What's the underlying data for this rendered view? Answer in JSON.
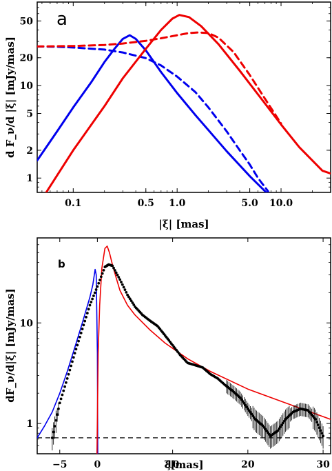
{
  "chart_data": [
    {
      "panel": "a",
      "type": "line",
      "xscale": "log",
      "yscale": "log",
      "xlim": [
        0.045,
        30
      ],
      "ylim": [
        0.7,
        80
      ],
      "xlabel": "|ξ| [mas]",
      "ylabel": "d F_ν/d |ξ| [mJy/mas]",
      "xticks": [
        0.1,
        0.5,
        1.0,
        5.0,
        10.0
      ],
      "xtick_labels": [
        "0.1",
        "0.5",
        "1.0",
        "5.0",
        "10.0"
      ],
      "yticks": [
        1,
        2,
        5,
        10,
        20,
        50
      ],
      "ytick_labels": [
        "1",
        "2",
        "5",
        "10",
        "20",
        "50"
      ],
      "series": [
        {
          "color": "#0000ee",
          "style": "solid",
          "x": [
            0.045,
            0.07,
            0.1,
            0.15,
            0.2,
            0.25,
            0.3,
            0.35,
            0.4,
            0.5,
            0.7,
            1.0,
            1.5,
            2.0,
            3.0,
            5.0,
            7.2
          ],
          "y": [
            1.55,
            3.2,
            5.8,
            11,
            18,
            25,
            32,
            35,
            32,
            24,
            14,
            8.3,
            4.8,
            3.3,
            1.95,
            1.05,
            0.7
          ]
        },
        {
          "color": "#0000ee",
          "style": "dashed",
          "x": [
            0.045,
            0.07,
            0.1,
            0.2,
            0.3,
            0.5,
            0.7,
            1.0,
            1.5,
            2.0,
            3.0,
            4.0,
            5.0,
            6.0,
            7.5
          ],
          "y": [
            26.5,
            26.3,
            25.8,
            24.5,
            22.8,
            19.8,
            16.5,
            12.5,
            8.5,
            5.8,
            3.2,
            2.0,
            1.4,
            1.0,
            0.72
          ]
        },
        {
          "color": "#ee0000",
          "style": "solid",
          "x": [
            0.055,
            0.1,
            0.2,
            0.3,
            0.5,
            0.7,
            0.9,
            1.05,
            1.3,
            1.7,
            2.5,
            4.0,
            7.0,
            10.0,
            15.0,
            25.0,
            30.0
          ],
          "y": [
            0.7,
            2.0,
            6.0,
            12,
            25,
            40,
            53,
            58,
            55,
            44,
            28,
            14.5,
            6.4,
            3.8,
            2.15,
            1.2,
            1.12
          ]
        },
        {
          "color": "#ee0000",
          "style": "dashed",
          "x": [
            0.045,
            0.1,
            0.2,
            0.3,
            0.5,
            0.7,
            1.0,
            1.3,
            1.6,
            2.0,
            2.5,
            3.5,
            5.0,
            7.0,
            10.0
          ],
          "y": [
            26.5,
            26.8,
            27.5,
            28.5,
            30.5,
            32.5,
            35,
            37,
            37.5,
            37,
            33,
            23,
            13,
            7.2,
            3.9
          ]
        }
      ]
    },
    {
      "panel": "b",
      "type": "line",
      "yscale": "log",
      "xlim": [
        -8,
        31
      ],
      "ylim": [
        0.5,
        70
      ],
      "xlabel": "ξ[mas]",
      "ylabel": "dF_ν/d|ξ| [mJy/mas]",
      "xticks": [
        -5,
        0,
        10,
        20,
        30
      ],
      "xtick_labels": [
        "−5",
        "0",
        "10",
        "20",
        "30"
      ],
      "yticks": [
        1,
        10
      ],
      "ytick_labels": [
        "1",
        "10"
      ],
      "hline": 0.72,
      "series": [
        {
          "color": "#0000ee",
          "style": "solid",
          "x": [
            -8,
            -7,
            -6,
            -5,
            -4,
            -3,
            -2,
            -1,
            -0.6,
            -0.3,
            -0.15,
            0,
            0.05
          ],
          "y": [
            0.72,
            0.95,
            1.3,
            2.0,
            3.3,
            5.7,
            10,
            18,
            24,
            34,
            30,
            5,
            0.5
          ]
        },
        {
          "color": "#ee0000",
          "style": "solid",
          "x": [
            -0.05,
            0.1,
            0.3,
            0.6,
            1.0,
            1.3,
            1.6,
            2.0,
            2.5,
            3,
            4,
            5,
            7,
            9,
            12,
            15,
            20,
            25,
            31
          ],
          "y": [
            0.5,
            5,
            15,
            35,
            55,
            58,
            50,
            38,
            28,
            21,
            15,
            12,
            8.5,
            6.3,
            4.4,
            3.3,
            2.2,
            1.6,
            1.1
          ]
        },
        {
          "color": "#000000",
          "style": "dotted-errorbars",
          "x": [
            -6,
            -5,
            -4,
            -3,
            -2,
            -1,
            0,
            1,
            1.5,
            2,
            3,
            4,
            5,
            6,
            7,
            8,
            9,
            10,
            11,
            12,
            13,
            14,
            15,
            16,
            17,
            18,
            19,
            20,
            21,
            22,
            23,
            24,
            25,
            26,
            27,
            28,
            29,
            30
          ],
          "y": [
            0.72,
            1.6,
            2.8,
            5.0,
            8.7,
            15,
            23,
            36,
            38,
            37,
            27,
            19,
            14.5,
            12,
            10.5,
            9.3,
            7.5,
            6.0,
            4.8,
            4.0,
            3.8,
            3.6,
            3.1,
            2.8,
            2.4,
            2.1,
            1.8,
            1.4,
            1.1,
            0.95,
            0.75,
            0.85,
            1.1,
            1.3,
            1.4,
            1.35,
            1.1,
            0.75
          ]
        }
      ]
    }
  ]
}
